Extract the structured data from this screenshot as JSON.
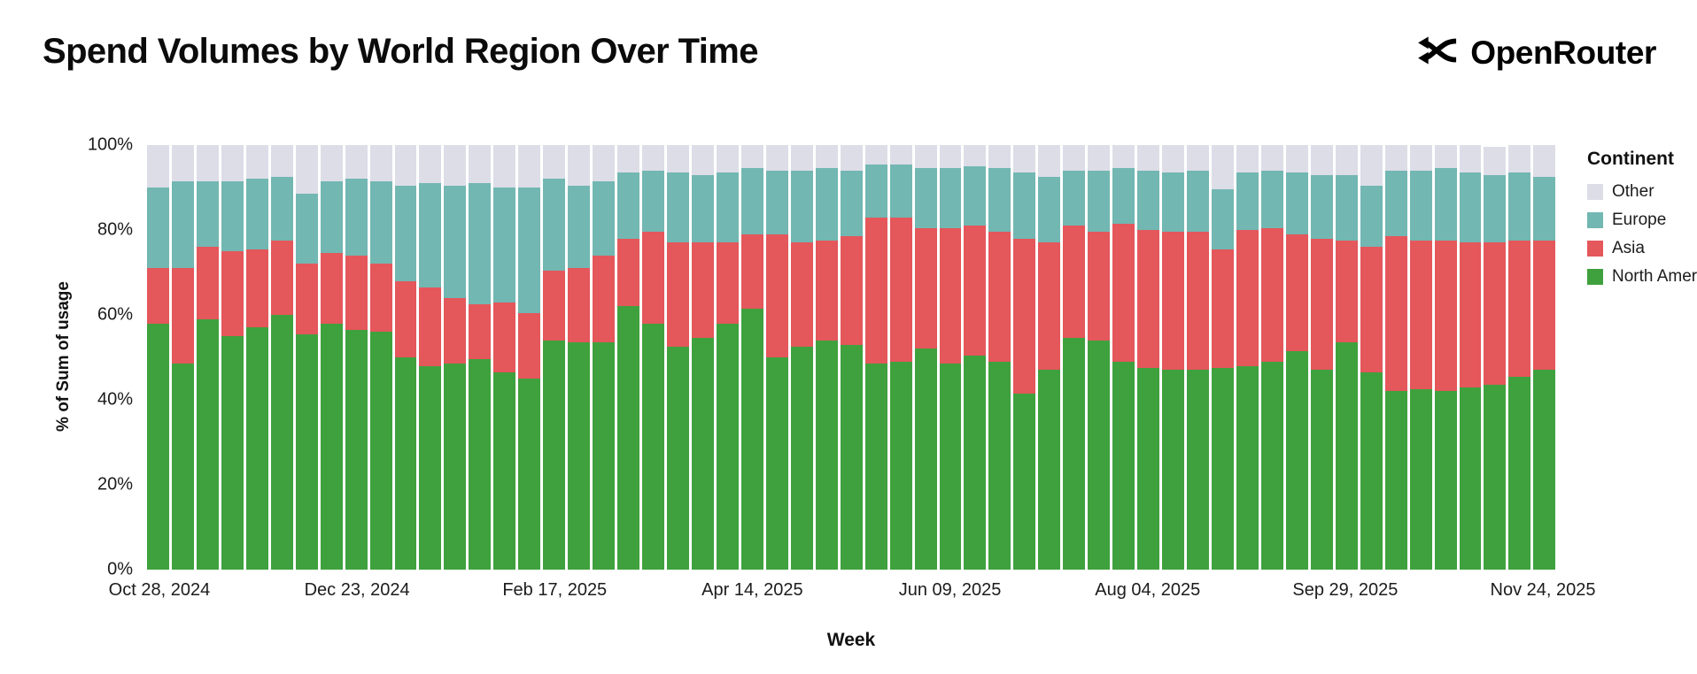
{
  "header": {
    "title": "Spend Volumes by World Region Over Time",
    "brand": "OpenRouter"
  },
  "chart_data": {
    "type": "bar",
    "stacked": true,
    "normalized_percent": true,
    "title": "Spend Volumes by World Region Over Time",
    "xlabel": "Week",
    "ylabel": "% of Sum of usage",
    "ylim": [
      0,
      100
    ],
    "y_ticks": [
      "100%",
      "80%",
      "60%",
      "40%",
      "20%",
      "0%"
    ],
    "x_tick_labels": [
      {
        "index": 0,
        "label": "Oct 28, 2024"
      },
      {
        "index": 8,
        "label": "Dec 23, 2024"
      },
      {
        "index": 16,
        "label": "Feb 17, 2025"
      },
      {
        "index": 24,
        "label": "Apr 14, 2025"
      },
      {
        "index": 32,
        "label": "Jun 09, 2025"
      },
      {
        "index": 40,
        "label": "Aug 04, 2025"
      },
      {
        "index": 48,
        "label": "Sep 29, 2025"
      },
      {
        "index": 56,
        "label": "Nov 24, 2025"
      }
    ],
    "series": [
      {
        "name": "North America",
        "color": "#3fa13d",
        "values": [
          58,
          48.5,
          59,
          55,
          57,
          60,
          55.5,
          58,
          56.5,
          56,
          50,
          48,
          48.5,
          49.5,
          46.5,
          45,
          54,
          53.5,
          53.5,
          62,
          58,
          52.5,
          54.5,
          58,
          61.5,
          50,
          52.5,
          54,
          53,
          48.5,
          49,
          52,
          48.5,
          50.5,
          49,
          41.5,
          47,
          54.5,
          54,
          49,
          47.5,
          47,
          47,
          47.5,
          48,
          49,
          51.5,
          47,
          53.5,
          46.5,
          42,
          42.5,
          42,
          43,
          43.5,
          45.5,
          47
        ]
      },
      {
        "name": "Asia",
        "color": "#e4575b",
        "values": [
          13,
          22.5,
          17,
          20,
          18.5,
          17.5,
          16.5,
          16.5,
          17.5,
          16,
          18,
          18.5,
          15.5,
          13,
          16.5,
          15.5,
          16.5,
          17.5,
          20.5,
          16,
          21.5,
          24.5,
          22.5,
          19,
          17.5,
          29,
          24.5,
          23.5,
          25.5,
          34.5,
          34,
          28.5,
          32,
          30.5,
          30.5,
          36.5,
          30,
          26.5,
          25.5,
          32.5,
          32.5,
          32.5,
          32.5,
          28,
          32,
          31.5,
          27.5,
          31,
          24,
          29.5,
          36.5,
          35,
          35.5,
          34,
          33.5,
          32,
          30.5
        ]
      },
      {
        "name": "Europe",
        "color": "#72b7b2",
        "values": [
          19,
          20.5,
          15.5,
          16.5,
          16.5,
          15,
          16.5,
          17,
          18,
          19.5,
          22.5,
          24.5,
          26.5,
          28.5,
          27,
          29.5,
          21.5,
          19.5,
          17.5,
          15.5,
          14.5,
          16.5,
          16,
          16.5,
          15.5,
          15,
          17,
          17,
          15.5,
          12.5,
          12.5,
          14,
          14,
          14,
          15,
          15.5,
          15.5,
          13,
          14.5,
          13,
          14,
          14,
          14.5,
          14,
          13.5,
          13.5,
          14.5,
          15,
          15.5,
          14.5,
          15.5,
          16.5,
          17,
          16.5,
          16,
          16,
          15
        ]
      },
      {
        "name": "Other",
        "color": "#dddde7",
        "values": [
          10,
          8.5,
          8.5,
          8.5,
          8,
          7.5,
          11.5,
          8.5,
          8,
          8.5,
          9.5,
          9,
          9.5,
          9,
          10,
          10,
          8,
          9.5,
          8.5,
          6.5,
          6,
          6.5,
          7,
          6.5,
          5.5,
          6,
          6,
          5.5,
          6,
          4.5,
          4.5,
          5.5,
          5.5,
          5,
          5.5,
          6.5,
          7.5,
          6,
          6,
          5.5,
          6,
          6.5,
          6,
          10.5,
          6.5,
          6,
          6.5,
          7,
          7,
          9.5,
          6,
          6,
          5.5,
          6.5,
          6.5,
          6.5,
          7.5
        ]
      }
    ],
    "legend": {
      "title": "Continent",
      "position": "right",
      "items": [
        {
          "label": "Other",
          "color": "#dddde7"
        },
        {
          "label": "Europe",
          "color": "#72b7b2"
        },
        {
          "label": "Asia",
          "color": "#e4575b"
        },
        {
          "label": "North America",
          "color": "#3fa13d"
        }
      ]
    }
  }
}
